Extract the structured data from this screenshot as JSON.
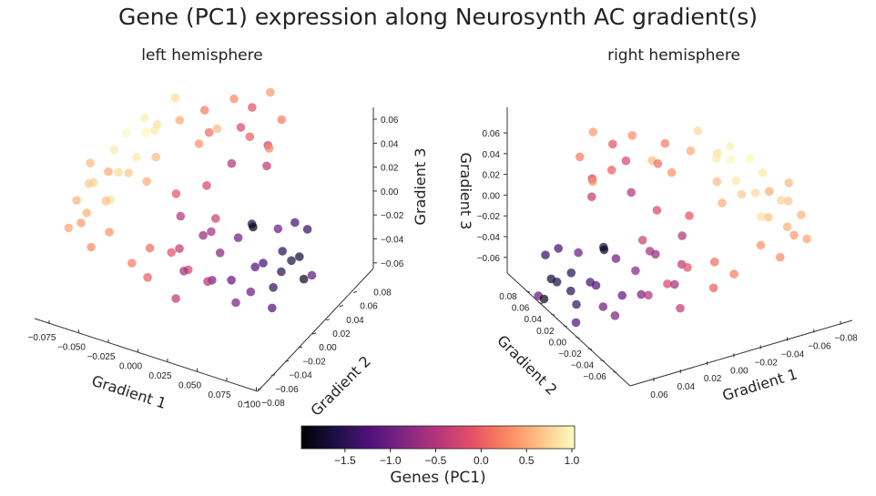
{
  "chart_data": {
    "type": "scatter",
    "title": "Gene (PC1) expression along Neurosynth AC gradient(s)",
    "panels": [
      {
        "title": "left hemisphere",
        "xlabel": "Gradient 1",
        "ylabel": "Gradient 2",
        "zlabel": "Gradient 3",
        "x_ticks": [
          "−0.075",
          "−0.050",
          "−0.025",
          "0.000",
          "0.025",
          "0.050",
          "0.075",
          "0.100"
        ],
        "y_ticks": [
          "−0.08",
          "−0.06",
          "−0.04",
          "−0.02",
          "0.00",
          "0.02",
          "0.04",
          "0.06",
          "0.08"
        ],
        "z_ticks": [
          "0.06",
          "0.04",
          "0.02",
          "0.00",
          "−0.02",
          "−0.04",
          "−0.06"
        ]
      },
      {
        "title": "right hemisphere",
        "xlabel": "Gradient 1",
        "ylabel": "Gradient 2",
        "zlabel": "Gradient 3",
        "x_ticks": [
          "0.06",
          "0.04",
          "0.02",
          "0.00",
          "−0.02",
          "−0.04",
          "−0.06",
          "−0.08"
        ],
        "y_ticks": [
          "0.08",
          "0.06",
          "0.04",
          "0.02",
          "0.00",
          "−0.02",
          "−0.04",
          "−0.06"
        ],
        "z_ticks": [
          "0.06",
          "0.04",
          "0.02",
          "0.00",
          "−0.02",
          "−0.04",
          "−0.06"
        ]
      }
    ],
    "point_fields": [
      "gradient1",
      "gradient2",
      "gradient3",
      "pc1"
    ],
    "points": [
      [
        -0.085,
        -0.03,
        0.0,
        0.55
      ],
      [
        -0.08,
        -0.02,
        0.01,
        0.7
      ],
      [
        -0.075,
        -0.04,
        -0.01,
        0.4
      ],
      [
        -0.07,
        0.0,
        0.03,
        0.9
      ],
      [
        -0.065,
        0.01,
        0.04,
        1.0
      ],
      [
        -0.06,
        -0.01,
        0.02,
        0.8
      ],
      [
        -0.055,
        0.02,
        0.05,
        0.95
      ],
      [
        -0.05,
        0.03,
        0.04,
        0.85
      ],
      [
        -0.07,
        -0.03,
        0.02,
        0.75
      ],
      [
        -0.08,
        -0.05,
        -0.01,
        0.45
      ],
      [
        -0.06,
        -0.05,
        -0.02,
        0.3
      ],
      [
        -0.05,
        0.0,
        0.03,
        0.9
      ],
      [
        -0.045,
        0.02,
        0.02,
        0.6
      ],
      [
        -0.065,
        -0.02,
        0.0,
        0.65
      ],
      [
        -0.075,
        0.0,
        0.01,
        0.5
      ],
      [
        -0.055,
        -0.03,
        0.01,
        0.85
      ],
      [
        -0.04,
        0.01,
        0.05,
        0.9
      ],
      [
        -0.05,
        -0.04,
        -0.01,
        0.35
      ],
      [
        -0.085,
        -0.01,
        0.02,
        0.6
      ],
      [
        -0.06,
        0.03,
        0.03,
        1.0
      ],
      [
        -0.045,
        -0.02,
        0.03,
        0.7
      ],
      [
        -0.07,
        -0.04,
        0.0,
        0.55
      ],
      [
        -0.04,
        0.04,
        0.06,
        0.8
      ],
      [
        -0.035,
        -0.01,
        0.02,
        0.5
      ],
      [
        -0.02,
        0.05,
        0.05,
        0.2
      ],
      [
        0.0,
        0.06,
        0.06,
        0.3
      ],
      [
        0.01,
        0.07,
        0.05,
        -0.1
      ],
      [
        0.02,
        0.08,
        0.06,
        0.4
      ],
      [
        -0.01,
        0.04,
        0.04,
        0.1
      ],
      [
        0.03,
        0.06,
        0.03,
        -0.3
      ],
      [
        0.02,
        0.05,
        0.04,
        0.0
      ],
      [
        -0.03,
        0.03,
        0.05,
        0.5
      ],
      [
        0.0,
        0.07,
        0.03,
        -0.2
      ],
      [
        0.01,
        0.04,
        0.02,
        -0.5
      ],
      [
        0.025,
        0.07,
        0.02,
        0.3
      ],
      [
        -0.015,
        0.06,
        0.03,
        0.6
      ],
      [
        0.03,
        0.08,
        0.04,
        0.2
      ],
      [
        0.035,
        0.05,
        0.02,
        -0.4
      ],
      [
        -0.025,
        0.05,
        0.02,
        0.35
      ],
      [
        0.0,
        -0.02,
        -0.02,
        -0.4
      ],
      [
        0.01,
        -0.03,
        -0.03,
        -0.6
      ],
      [
        0.02,
        -0.04,
        -0.02,
        -0.2
      ],
      [
        -0.01,
        -0.05,
        -0.03,
        0.0
      ],
      [
        0.015,
        -0.01,
        -0.01,
        -0.7
      ],
      [
        0.025,
        -0.02,
        -0.04,
        -0.5
      ],
      [
        0.005,
        -0.04,
        -0.01,
        -0.1
      ],
      [
        -0.02,
        -0.03,
        -0.02,
        0.1
      ],
      [
        0.03,
        -0.01,
        -0.02,
        -0.8
      ],
      [
        0.02,
        0.0,
        0.0,
        -0.3
      ],
      [
        -0.005,
        -0.01,
        0.0,
        -0.5
      ],
      [
        0.035,
        -0.03,
        -0.03,
        -0.9
      ],
      [
        0.01,
        0.01,
        -0.02,
        -0.6
      ],
      [
        -0.03,
        -0.04,
        -0.03,
        0.2
      ],
      [
        0.0,
        0.02,
        0.01,
        -0.2
      ],
      [
        0.04,
        0.0,
        -0.01,
        -1.0
      ],
      [
        0.015,
        -0.05,
        -0.04,
        -0.4
      ],
      [
        -0.015,
        0.0,
        0.01,
        -0.1
      ],
      [
        0.05,
        0.02,
        -0.04,
        -1.3
      ],
      [
        0.06,
        0.03,
        -0.05,
        -1.5
      ],
      [
        0.055,
        0.0,
        -0.03,
        -1.2
      ],
      [
        0.07,
        0.04,
        -0.04,
        -1.7
      ],
      [
        0.065,
        0.01,
        -0.05,
        -1.4
      ],
      [
        0.045,
        0.05,
        -0.03,
        -1.0
      ],
      [
        0.075,
        0.02,
        -0.03,
        -1.6
      ],
      [
        0.04,
        -0.01,
        -0.04,
        -1.1
      ],
      [
        0.06,
        0.05,
        -0.02,
        -1.3
      ],
      [
        0.08,
        0.03,
        -0.05,
        -1.8
      ],
      [
        0.05,
        -0.02,
        -0.05,
        -0.9
      ],
      [
        0.035,
        0.03,
        -0.02,
        -1.9
      ],
      [
        0.07,
        0.0,
        -0.06,
        -1.2
      ],
      [
        0.055,
        0.04,
        -0.04,
        -1.5
      ],
      [
        0.045,
        0.01,
        -0.06,
        -1.0
      ],
      [
        0.065,
        0.06,
        -0.03,
        -1.4
      ],
      [
        0.04,
        0.02,
        -0.01,
        -1.6
      ],
      [
        0.075,
        0.05,
        -0.06,
        -1.1
      ]
    ],
    "colorbar": {
      "label": "Genes (PC1)",
      "colormap": "magma",
      "range": [
        -1.98,
        1.03
      ],
      "ticks": [
        -1.5,
        -1.0,
        -0.5,
        0.0,
        0.5,
        1.0
      ],
      "tick_labels": [
        "−1.5",
        "−1.0",
        "−0.5",
        "0.0",
        "0.5",
        "1.0"
      ],
      "colors": [
        "#000004",
        "#1c1044",
        "#4f127b",
        "#812581",
        "#b5367a",
        "#e55064",
        "#fb8761",
        "#fec287",
        "#fcfdbf"
      ]
    }
  }
}
